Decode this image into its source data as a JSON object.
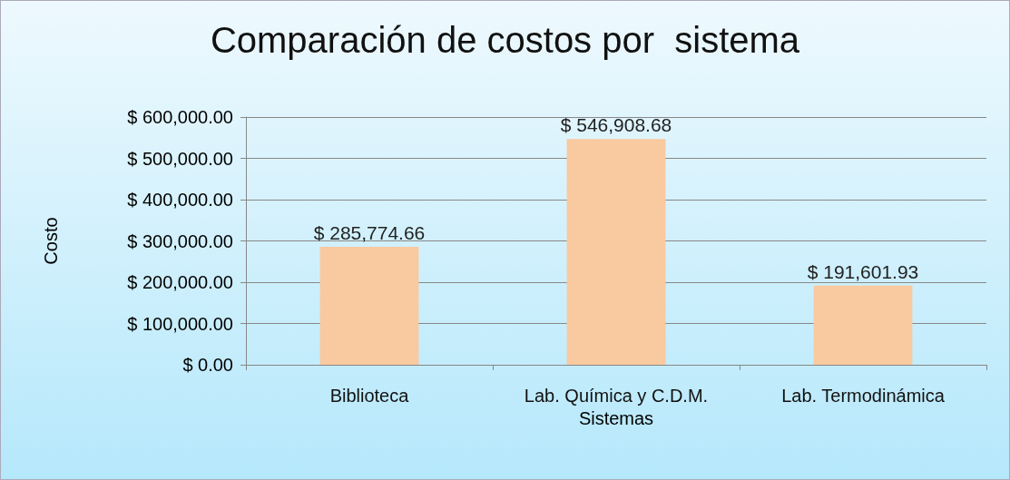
{
  "chart_data": {
    "type": "bar",
    "title": "Comparación de costos por  sistema",
    "xlabel": "Sistemas",
    "ylabel": "Costo",
    "categories": [
      "Biblioteca",
      "Lab. Química y C.D.M.",
      "Lab. Termodinámica"
    ],
    "values": [
      285774.66,
      546908.68,
      191601.93
    ],
    "value_labels": [
      "$ 285,774.66",
      "$ 546,908.68",
      "$ 191,601.93"
    ],
    "color": "#f9c99f",
    "ylim": [
      0,
      600000
    ],
    "yticks": [
      {
        "value": 0,
        "label": "$ 0.00"
      },
      {
        "value": 100000,
        "label": "$ 100,000.00"
      },
      {
        "value": 200000,
        "label": "$ 200,000.00"
      },
      {
        "value": 300000,
        "label": "$ 300,000.00"
      },
      {
        "value": 400000,
        "label": "$ 400,000.00"
      },
      {
        "value": 500000,
        "label": "$ 500,000.00"
      },
      {
        "value": 600000,
        "label": "$ 600,000.00"
      }
    ],
    "grid": "y"
  }
}
